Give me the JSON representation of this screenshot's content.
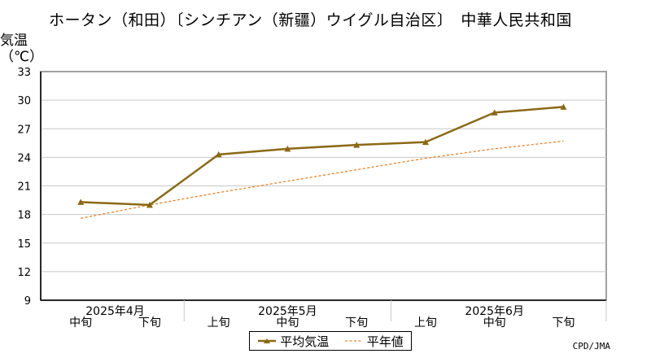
{
  "title": "ホータン（和田）〔シンチアン（新疆）ウイグル自治区〕　中華人民共和国",
  "credit": "CPD/JMA",
  "colors": {
    "average": "#8b6914",
    "normal": "#f08020",
    "grid": "#c8c8c8",
    "axis": "#000000",
    "plot_border": "#a0a0a0"
  },
  "chart_data": {
    "type": "line",
    "ylabel": "気温\n（℃）",
    "ylim": [
      9,
      33
    ],
    "yticks": [
      9,
      12,
      15,
      18,
      21,
      24,
      27,
      30,
      33
    ],
    "grid": true,
    "legend_position": "bottom-center",
    "x_sublabels": [
      "中旬",
      "下旬",
      "上旬",
      "中旬",
      "下旬",
      "上旬",
      "中旬",
      "下旬"
    ],
    "x_groups": [
      {
        "label": "2025年4月",
        "span": [
          0,
          1
        ]
      },
      {
        "label": "2025年5月",
        "span": [
          2,
          4
        ]
      },
      {
        "label": "2025年6月",
        "span": [
          5,
          7
        ]
      }
    ],
    "series": [
      {
        "name": "平均気温",
        "style": "solid-triangle",
        "values": [
          19.3,
          19.0,
          24.3,
          24.9,
          25.3,
          25.6,
          28.7,
          29.3
        ]
      },
      {
        "name": "平年値",
        "style": "dashed",
        "values": [
          17.6,
          19.0,
          20.3,
          21.5,
          22.7,
          23.9,
          24.9,
          25.7
        ]
      }
    ]
  }
}
